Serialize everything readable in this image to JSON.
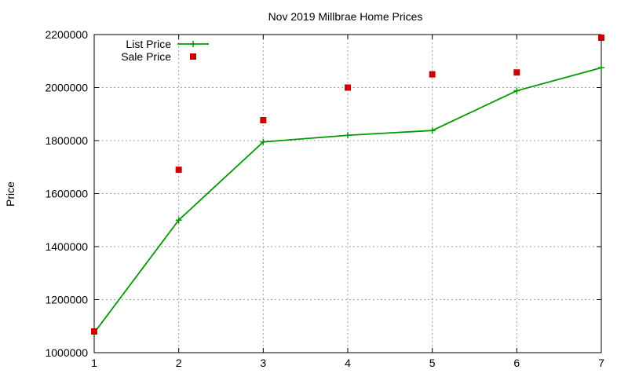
{
  "chart_data": {
    "type": "line",
    "title": "Nov 2019 Millbrae Home Prices",
    "xlabel": "",
    "ylabel": "Price",
    "xlim": [
      1,
      7
    ],
    "ylim": [
      1000000,
      2200000
    ],
    "x_ticks": [
      1,
      2,
      3,
      4,
      5,
      6,
      7
    ],
    "y_ticks": [
      1000000,
      1200000,
      1400000,
      1600000,
      1800000,
      2000000,
      2200000
    ],
    "y_tick_labels": [
      "1000000",
      "1200000",
      "1400000",
      "1600000",
      "1800000",
      "2000000",
      "2200000"
    ],
    "grid": true,
    "legend_position": "top-left",
    "series": [
      {
        "name": "List Price",
        "style": "line-points",
        "color": "#009900",
        "x": [
          1,
          2,
          3,
          4,
          5,
          6,
          7
        ],
        "y": [
          1075000,
          1500000,
          1795000,
          1820000,
          1838000,
          1988000,
          2075000
        ]
      },
      {
        "name": "Sale Price",
        "style": "points",
        "color": "#cc0000",
        "x": [
          1,
          2,
          3,
          4,
          5,
          6,
          7
        ],
        "y": [
          1080000,
          1690000,
          1877000,
          2000000,
          2050000,
          2057000,
          2188000
        ]
      }
    ]
  }
}
